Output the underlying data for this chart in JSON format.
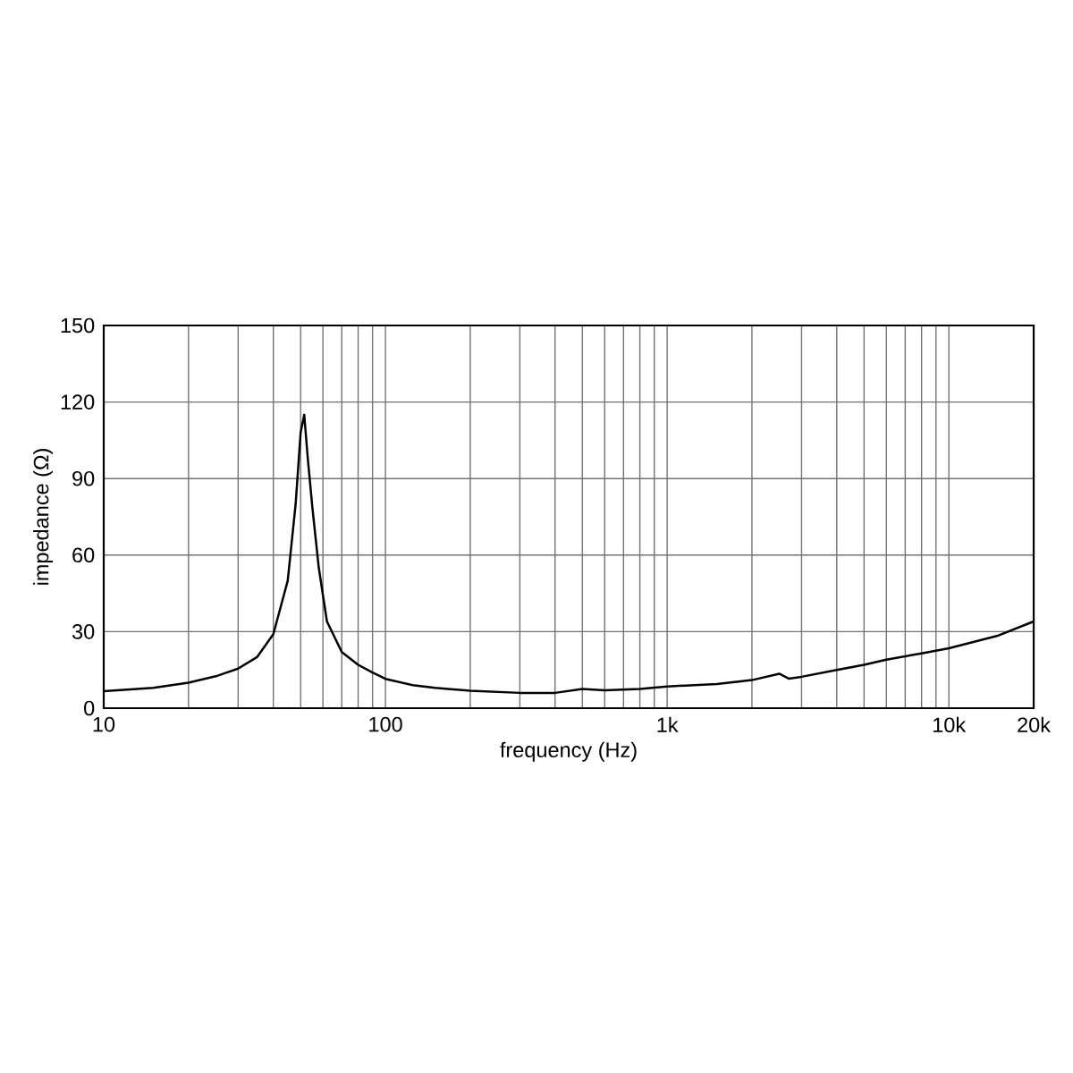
{
  "chart_data": {
    "type": "line",
    "xlabel": "frequency (Hz)",
    "ylabel": "impedance (Ω)",
    "log": "x",
    "grid": true,
    "marker": "none",
    "line_style": "solid",
    "xlim": [
      10,
      20000
    ],
    "ylim": [
      0,
      150
    ],
    "xticks": [
      10,
      {
        "value": 20,
        "label": null
      },
      {
        "value": 30,
        "label": null
      },
      {
        "value": 40,
        "label": null
      },
      {
        "value": 50,
        "label": null
      },
      {
        "value": 60,
        "label": null
      },
      {
        "value": 70,
        "label": null
      },
      {
        "value": 80,
        "label": null
      },
      {
        "value": 90,
        "label": null
      },
      100,
      {
        "value": 200,
        "label": null
      },
      {
        "value": 300,
        "label": null
      },
      {
        "value": 400,
        "label": null
      },
      {
        "value": 500,
        "label": null
      },
      {
        "value": 600,
        "label": null
      },
      {
        "value": 700,
        "label": null
      },
      {
        "value": 800,
        "label": null
      },
      {
        "value": 900,
        "label": null
      },
      {
        "value": 1000,
        "label": "1k"
      },
      {
        "value": 2000,
        "label": null
      },
      {
        "value": 3000,
        "label": null
      },
      {
        "value": 4000,
        "label": null
      },
      {
        "value": 5000,
        "label": null
      },
      {
        "value": 6000,
        "label": null
      },
      {
        "value": 7000,
        "label": null
      },
      {
        "value": 8000,
        "label": null
      },
      {
        "value": 9000,
        "label": null
      },
      {
        "value": 10000,
        "label": "10k"
      },
      {
        "value": 20000,
        "label": "20k"
      }
    ],
    "yticks": [
      0,
      30,
      60,
      90,
      120,
      150
    ],
    "series": [
      {
        "color": "#000000",
        "x": [
          10,
          15,
          20,
          25,
          30,
          35,
          40,
          45,
          48,
          50,
          51.5,
          53,
          55,
          58,
          62,
          70,
          80,
          90,
          100,
          125,
          150,
          200,
          300,
          400,
          500,
          600,
          800,
          1000,
          1500,
          2000,
          2500,
          2700,
          3000,
          4000,
          5000,
          6000,
          8000,
          10000,
          15000,
          20000
        ],
        "values": [
          6.7,
          8,
          10,
          12.5,
          15.5,
          20,
          29,
          50,
          80,
          108,
          115,
          98,
          79,
          55,
          34,
          22,
          17,
          14,
          11.5,
          9,
          8,
          6.8,
          6,
          6,
          7.5,
          7,
          7.5,
          8.5,
          9.5,
          11,
          13.5,
          11.6,
          12.3,
          15,
          17,
          19,
          21.5,
          23.5,
          28.5,
          34
        ]
      }
    ]
  }
}
